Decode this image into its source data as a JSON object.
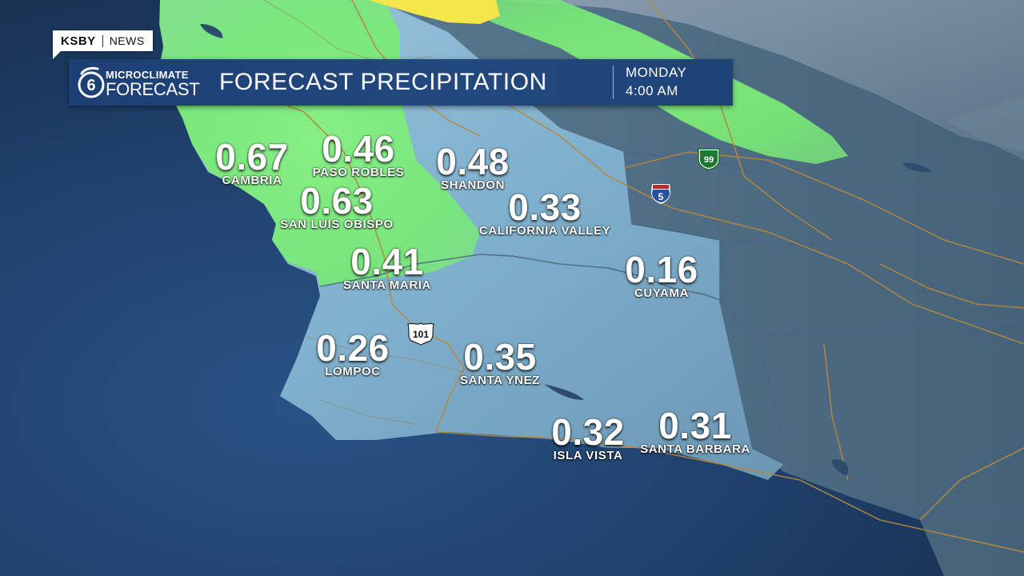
{
  "header": {
    "station_call": "KSBY",
    "station_network": "NEWS",
    "logo_top": "MICROCLIMATE",
    "logo_bottom": "FORECAST",
    "logo_icon": "six-logo-icon",
    "title": "FORECAST PRECIPITATION",
    "day": "MONDAY",
    "time": "4:00 AM"
  },
  "colors": {
    "ocean": "#1f3f6a",
    "land": "#86b4d0",
    "precip_green": "#7cf07a",
    "precip_yellow": "#f2e64a",
    "title_bar": "#1d3f74"
  },
  "highways": [
    {
      "number": "99",
      "type": "state-route",
      "icon": "ca-route-shield-icon"
    },
    {
      "number": "5",
      "type": "interstate",
      "icon": "interstate-shield-icon"
    },
    {
      "number": "101",
      "type": "us-route",
      "icon": "us-route-shield-icon"
    }
  ],
  "cities": [
    {
      "id": "cambria",
      "name": "CAMBRIA",
      "value": "0.67"
    },
    {
      "id": "paso-robles",
      "name": "PASO ROBLES",
      "value": "0.46"
    },
    {
      "id": "shandon",
      "name": "SHANDON",
      "value": "0.48"
    },
    {
      "id": "san-luis-obispo",
      "name": "SAN LUIS OBISPO",
      "value": "0.63"
    },
    {
      "id": "california-valley",
      "name": "CALIFORNIA VALLEY",
      "value": "0.33"
    },
    {
      "id": "santa-maria",
      "name": "SANTA MARIA",
      "value": "0.41"
    },
    {
      "id": "cuyama",
      "name": "CUYAMA",
      "value": "0.16"
    },
    {
      "id": "lompoc",
      "name": "LOMPOC",
      "value": "0.26"
    },
    {
      "id": "santa-ynez",
      "name": "SANTA YNEZ",
      "value": "0.35"
    },
    {
      "id": "isla-vista",
      "name": "ISLA VISTA",
      "value": "0.32"
    },
    {
      "id": "santa-barbara",
      "name": "SANTA BARBARA",
      "value": "0.31"
    }
  ]
}
